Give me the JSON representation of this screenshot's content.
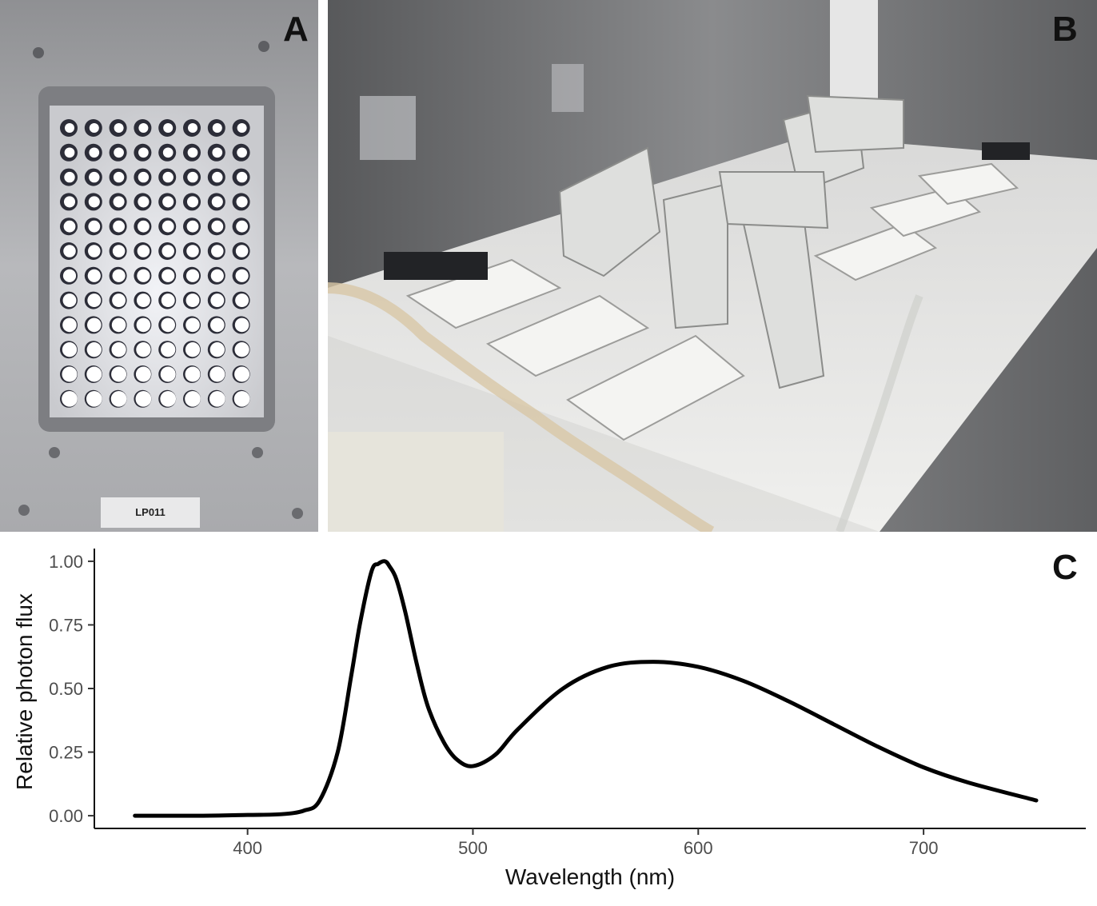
{
  "panels": {
    "a": {
      "label": "A",
      "device_tag": "LP011"
    },
    "b": {
      "label": "B"
    },
    "c": {
      "label": "C"
    }
  },
  "chart_data": {
    "type": "line",
    "title": "",
    "xlabel": "Wavelength (nm)",
    "ylabel": "Relative photon flux",
    "xlim": [
      332,
      772
    ],
    "ylim": [
      -0.05,
      1.05
    ],
    "xticks": [
      400,
      500,
      600,
      700
    ],
    "yticks": [
      0.0,
      0.25,
      0.5,
      0.75,
      1.0
    ],
    "ytick_labels": [
      "0.00",
      "0.25",
      "0.50",
      "0.75",
      "1.00"
    ],
    "grid": false,
    "series": [
      {
        "color": "#000000",
        "x": [
          350,
          380,
          400,
          415,
          425,
          432,
          440,
          446,
          450,
          455,
          458,
          461,
          463,
          466,
          470,
          475,
          480,
          487,
          493,
          500,
          510,
          520,
          540,
          560,
          580,
          600,
          620,
          640,
          660,
          680,
          700,
          720,
          750
        ],
        "y": [
          0.0,
          0.0,
          0.003,
          0.006,
          0.02,
          0.06,
          0.25,
          0.55,
          0.76,
          0.96,
          0.99,
          1.0,
          0.98,
          0.93,
          0.8,
          0.6,
          0.43,
          0.29,
          0.22,
          0.195,
          0.24,
          0.34,
          0.5,
          0.585,
          0.605,
          0.585,
          0.53,
          0.45,
          0.36,
          0.27,
          0.19,
          0.13,
          0.06
        ]
      }
    ]
  }
}
